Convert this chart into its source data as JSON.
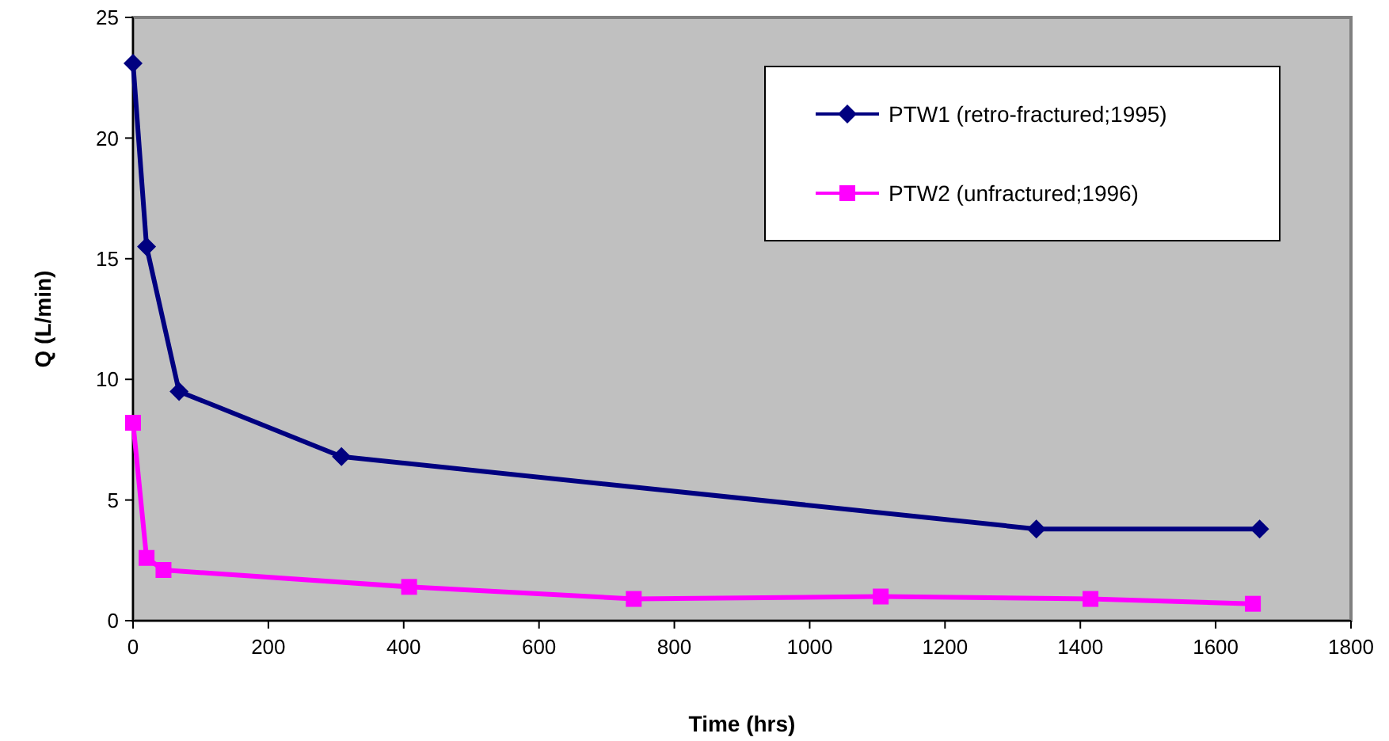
{
  "chart_data": {
    "type": "line",
    "xlabel": "Time (hrs)",
    "ylabel": "Q (L/min)",
    "xlim": [
      0,
      1800
    ],
    "xticks": [
      0,
      200,
      400,
      600,
      800,
      1000,
      1200,
      1400,
      1600,
      1800
    ],
    "ylim": [
      0,
      25
    ],
    "yticks": [
      0,
      5,
      10,
      15,
      20,
      25
    ],
    "grid": false,
    "legend": "top right",
    "series": [
      {
        "name": "PTW1 (retro-fractured;1995)",
        "color": "#000080",
        "marker": "diamond",
        "x": [
          0,
          20,
          68,
          308,
          1335,
          1665
        ],
        "values": [
          23.1,
          15.5,
          9.5,
          6.8,
          3.8,
          3.8
        ]
      },
      {
        "name": "PTW2 (unfractured;1996)",
        "color": "#ff00ff",
        "marker": "square",
        "x": [
          0,
          20,
          45,
          408,
          740,
          1105,
          1415,
          1655
        ],
        "values": [
          8.2,
          2.6,
          2.1,
          1.4,
          0.9,
          1.0,
          0.9,
          0.7
        ]
      }
    ]
  }
}
